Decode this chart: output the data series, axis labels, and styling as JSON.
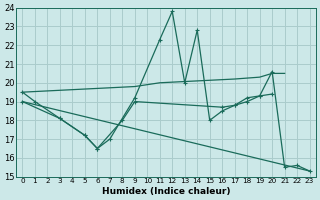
{
  "bg_color": "#cce8e8",
  "grid_color": "#aacccc",
  "line_color": "#1a6b5a",
  "xlabel": "Humidex (Indice chaleur)",
  "xlim": [
    -0.5,
    23.5
  ],
  "ylim": [
    15,
    24
  ],
  "yticks": [
    15,
    16,
    17,
    18,
    19,
    20,
    21,
    22,
    23,
    24
  ],
  "xticks": [
    0,
    1,
    2,
    3,
    4,
    5,
    6,
    7,
    8,
    9,
    10,
    11,
    12,
    13,
    14,
    15,
    16,
    17,
    18,
    19,
    20,
    21,
    22,
    23
  ],
  "lines": [
    {
      "x": [
        0,
        1,
        3,
        5,
        6,
        7,
        9,
        11,
        12,
        13,
        14,
        15,
        16,
        17,
        18,
        19,
        20,
        21,
        22,
        23
      ],
      "y": [
        19.5,
        19.0,
        18.1,
        17.2,
        16.5,
        17.0,
        19.2,
        22.3,
        23.8,
        20.0,
        22.8,
        18.0,
        18.5,
        18.8,
        19.2,
        19.3,
        20.6,
        15.5,
        15.6,
        15.3
      ],
      "marker": true
    },
    {
      "x": [
        0,
        9,
        11,
        17,
        19,
        20,
        21
      ],
      "y": [
        19.5,
        19.8,
        20.0,
        20.2,
        20.3,
        20.5,
        20.5
      ],
      "marker": false
    },
    {
      "x": [
        0,
        3,
        5,
        6,
        8,
        9,
        16,
        17,
        18,
        19,
        20
      ],
      "y": [
        19.0,
        18.1,
        17.2,
        16.5,
        18.0,
        19.0,
        18.7,
        18.8,
        19.0,
        19.3,
        19.4
      ],
      "marker": true
    },
    {
      "x": [
        0,
        23
      ],
      "y": [
        19.0,
        15.3
      ],
      "marker": false
    }
  ]
}
